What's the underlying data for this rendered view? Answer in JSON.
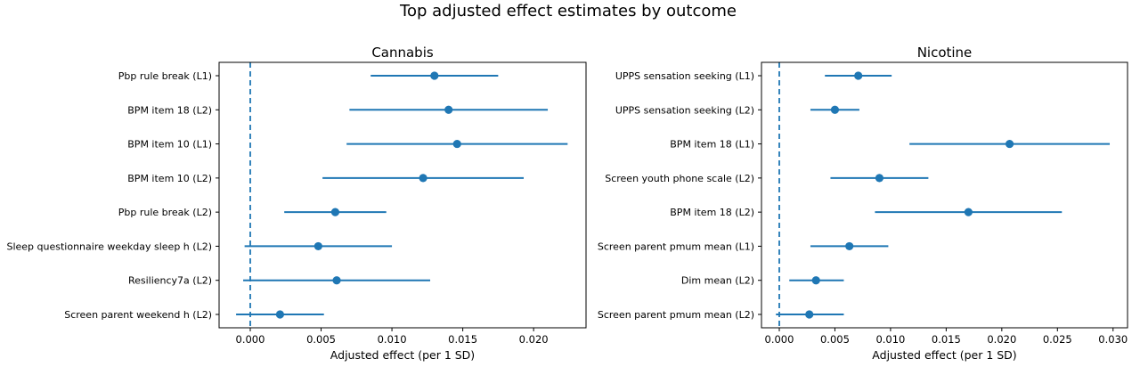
{
  "figure": {
    "title": "Top adjusted effect estimates by outcome"
  },
  "colors": {
    "series": "#1f77b4",
    "zero_line": "#1f77b4",
    "axes": "#000000"
  },
  "chart_data": [
    {
      "type": "forest",
      "title": "Cannabis",
      "xlabel": "Adjusted effect (per 1 SD)",
      "ylabel": "",
      "xlim": [
        -0.0022,
        0.0237
      ],
      "xticks": [
        "0.000",
        "0.005",
        "0.010",
        "0.015",
        "0.020"
      ],
      "tick_values": [
        0.0,
        0.005,
        0.01,
        0.015,
        0.02
      ],
      "reference_line": 0.0,
      "grid": false,
      "rows": [
        {
          "label": "Pbp rule break (L1)",
          "estimate": 0.013,
          "lower": 0.0085,
          "upper": 0.0175
        },
        {
          "label": "BPM item 18 (L2)",
          "estimate": 0.014,
          "lower": 0.007,
          "upper": 0.021
        },
        {
          "label": "BPM item 10 (L1)",
          "estimate": 0.0146,
          "lower": 0.0068,
          "upper": 0.0224
        },
        {
          "label": "BPM item 10 (L2)",
          "estimate": 0.0122,
          "lower": 0.0051,
          "upper": 0.0193
        },
        {
          "label": "Pbp rule break (L2)",
          "estimate": 0.006,
          "lower": 0.0024,
          "upper": 0.0096
        },
        {
          "label": "Sleep questionnaire weekday sleep h (L2)",
          "estimate": 0.0048,
          "lower": -0.0004,
          "upper": 0.01
        },
        {
          "label": "Resiliency7a (L2)",
          "estimate": 0.0061,
          "lower": -0.0005,
          "upper": 0.0127
        },
        {
          "label": "Screen parent weekend h (L2)",
          "estimate": 0.0021,
          "lower": -0.001,
          "upper": 0.0052
        }
      ]
    },
    {
      "type": "forest",
      "title": "Nicotine",
      "xlabel": "Adjusted effect (per 1 SD)",
      "ylabel": "",
      "xlim": [
        -0.0016,
        0.0313
      ],
      "xticks": [
        "0.000",
        "0.005",
        "0.010",
        "0.015",
        "0.020",
        "0.025",
        "0.030"
      ],
      "tick_values": [
        0.0,
        0.005,
        0.01,
        0.015,
        0.02,
        0.025,
        0.03
      ],
      "reference_line": 0.0,
      "grid": false,
      "rows": [
        {
          "label": "UPPS sensation seeking (L1)",
          "estimate": 0.0071,
          "lower": 0.0041,
          "upper": 0.0101
        },
        {
          "label": "UPPS sensation seeking (L2)",
          "estimate": 0.005,
          "lower": 0.0028,
          "upper": 0.0072
        },
        {
          "label": "BPM item 18 (L1)",
          "estimate": 0.0207,
          "lower": 0.0117,
          "upper": 0.0297
        },
        {
          "label": "Screen youth phone scale (L2)",
          "estimate": 0.009,
          "lower": 0.0046,
          "upper": 0.0134
        },
        {
          "label": "BPM item 18 (L2)",
          "estimate": 0.017,
          "lower": 0.0086,
          "upper": 0.0254
        },
        {
          "label": "Screen parent pmum mean (L1)",
          "estimate": 0.0063,
          "lower": 0.0028,
          "upper": 0.0098
        },
        {
          "label": "Dim mean (L2)",
          "estimate": 0.0033,
          "lower": 0.0009,
          "upper": 0.0058
        },
        {
          "label": "Screen parent pmum mean (L2)",
          "estimate": 0.0027,
          "lower": -0.0003,
          "upper": 0.0058
        }
      ]
    }
  ]
}
